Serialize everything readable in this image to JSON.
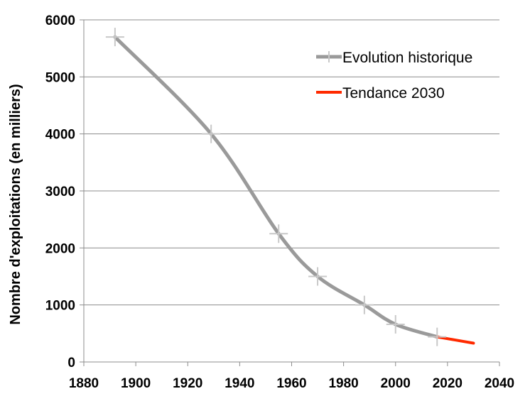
{
  "chart_data": {
    "type": "line",
    "title": "",
    "xlabel": "",
    "ylabel": "Nombre d'exploitations (en milliers)",
    "xlim": [
      1880,
      2040
    ],
    "ylim": [
      0,
      6000
    ],
    "x_ticks": [
      1880,
      1900,
      1920,
      1940,
      1960,
      1980,
      2000,
      2020,
      2040
    ],
    "y_ticks": [
      0,
      1000,
      2000,
      3000,
      4000,
      5000,
      6000
    ],
    "grid": "horizontal",
    "legend_position": "top-right",
    "series": [
      {
        "name": "Evolution historique",
        "color": "#9a9a9a",
        "marker": "plus",
        "x": [
          1892,
          1929,
          1955,
          1970,
          1988,
          2000,
          2016
        ],
        "y": [
          5700,
          4000,
          2250,
          1500,
          1000,
          660,
          440
        ]
      },
      {
        "name": "Tendance 2030",
        "color": "#ff2a00",
        "marker": "none",
        "x": [
          2016,
          2030
        ],
        "y": [
          440,
          330
        ]
      }
    ]
  }
}
